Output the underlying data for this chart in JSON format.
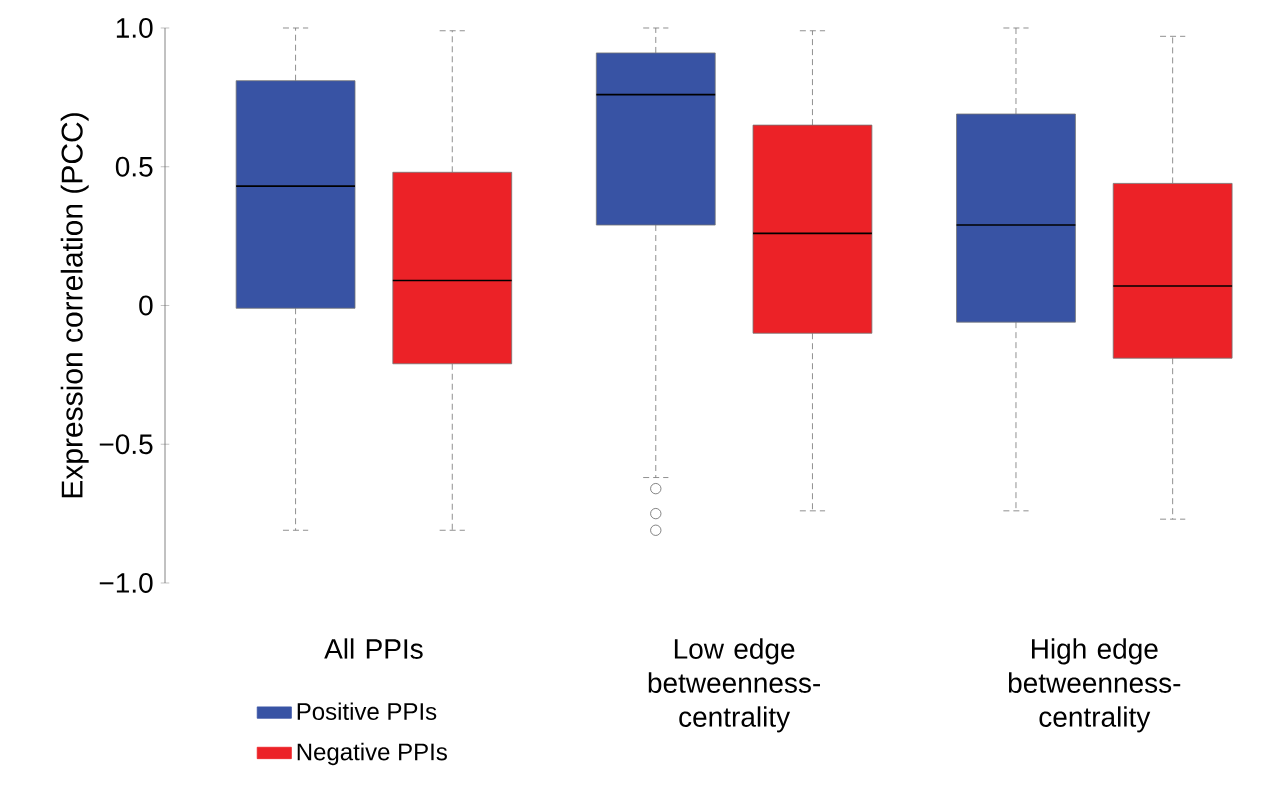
{
  "chart_data": {
    "type": "box",
    "ylabel": "Expression correlation (PCC)",
    "categories": [
      "All PPIs",
      "Low edge betweenness-centrality",
      "High edge betweenness-centrality"
    ],
    "series": [
      {
        "name": "Positive PPIs",
        "color": "#3853a4",
        "boxes": [
          {
            "low": -0.81,
            "q1": -0.01,
            "median": 0.43,
            "q3": 0.81,
            "high": 1.0
          },
          {
            "low": -0.62,
            "q1": 0.29,
            "median": 0.76,
            "q3": 0.91,
            "high": 1.0,
            "outliers": [
              -0.66,
              -0.75,
              -0.81
            ]
          },
          {
            "low": -0.74,
            "q1": -0.06,
            "median": 0.29,
            "q3": 0.69,
            "high": 1.0
          }
        ]
      },
      {
        "name": "Negative PPIs",
        "color": "#ec2227",
        "boxes": [
          {
            "low": -0.81,
            "q1": -0.21,
            "median": 0.09,
            "q3": 0.48,
            "high": 0.99
          },
          {
            "low": -0.74,
            "q1": -0.1,
            "median": 0.26,
            "q3": 0.65,
            "high": 0.99
          },
          {
            "low": -0.77,
            "q1": -0.19,
            "median": 0.07,
            "q3": 0.44,
            "high": 0.97
          }
        ]
      }
    ],
    "ylim": [
      -1.0,
      1.0
    ],
    "yticks": [
      {
        "value": -1.0,
        "label": "−1.0"
      },
      {
        "value": -0.5,
        "label": "−0.5"
      },
      {
        "value": 0,
        "label": "0"
      },
      {
        "value": 0.5,
        "label": "0.5"
      },
      {
        "value": 1.0,
        "label": "1.0"
      }
    ],
    "legend": "bottom left"
  }
}
